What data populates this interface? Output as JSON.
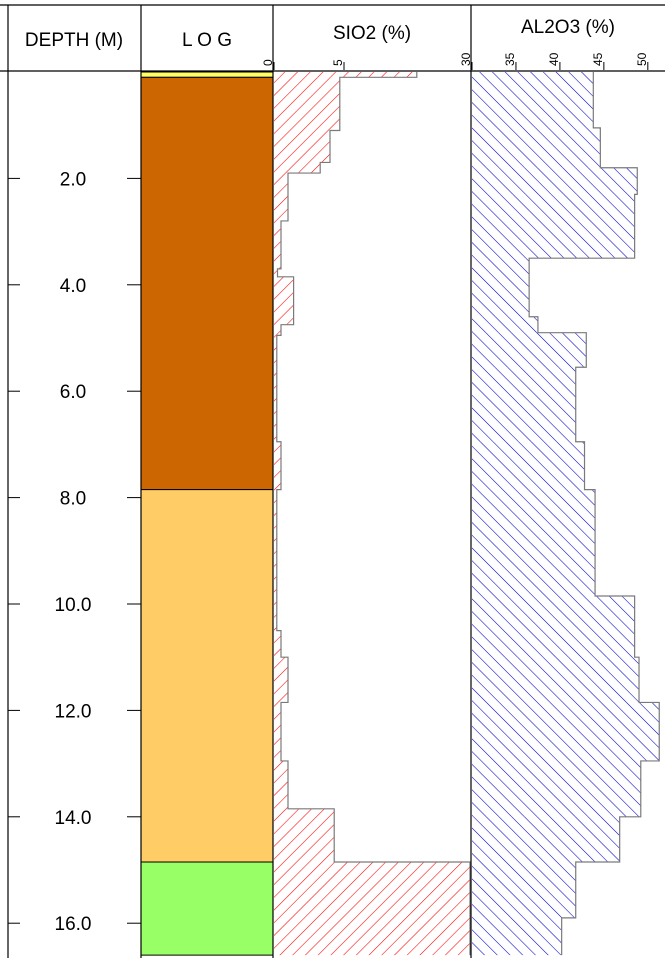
{
  "headers": {
    "depth": "DEPTH (M)",
    "log": "L O G",
    "sio2": "SIO2 (%)",
    "al2o3": "AL2O3 (%)"
  },
  "chart_data": {
    "type": "step-area",
    "depth_axis": {
      "label": "DEPTH (M)",
      "range": [
        0,
        16.6
      ],
      "ticks": [
        2,
        4,
        6,
        8,
        10,
        12,
        14,
        16
      ],
      "tick_labels": [
        "2.0",
        "4.0",
        "6.0",
        "8.0",
        "10.0",
        "12.0",
        "14.0",
        "16.0"
      ]
    },
    "log": {
      "label": "L O G",
      "layers": [
        {
          "top": 0.0,
          "bottom": 0.1,
          "color": "#FFFF66"
        },
        {
          "top": 0.1,
          "bottom": 7.85,
          "color": "#CC6600"
        },
        {
          "top": 7.85,
          "bottom": 14.85,
          "color": "#FFCC66"
        },
        {
          "top": 14.85,
          "bottom": 16.6,
          "color": "#99FF66"
        }
      ]
    },
    "sio2": {
      "label": "SIO2 (%)",
      "xlim": [
        0,
        14
      ],
      "ticks": [
        0,
        5
      ],
      "tick_labels": [
        "0",
        "5"
      ],
      "hatch_color": "#FF0000",
      "steps": [
        {
          "top": 0.0,
          "bottom": 0.1,
          "value": 10.2
        },
        {
          "top": 0.1,
          "bottom": 1.1,
          "value": 4.7
        },
        {
          "top": 1.1,
          "bottom": 1.7,
          "value": 4.0
        },
        {
          "top": 1.7,
          "bottom": 1.9,
          "value": 3.3
        },
        {
          "top": 1.9,
          "bottom": 2.8,
          "value": 1.0
        },
        {
          "top": 2.8,
          "bottom": 3.7,
          "value": 0.5
        },
        {
          "top": 3.7,
          "bottom": 3.85,
          "value": 0.25
        },
        {
          "top": 3.85,
          "bottom": 4.75,
          "value": 1.4
        },
        {
          "top": 4.75,
          "bottom": 4.95,
          "value": 0.5
        },
        {
          "top": 4.95,
          "bottom": 6.95,
          "value": 0.2
        },
        {
          "top": 6.95,
          "bottom": 7.85,
          "value": 0.5
        },
        {
          "top": 7.85,
          "bottom": 10.5,
          "value": 0.2
        },
        {
          "top": 10.5,
          "bottom": 11.0,
          "value": 0.5
        },
        {
          "top": 11.0,
          "bottom": 11.85,
          "value": 1.0
        },
        {
          "top": 11.85,
          "bottom": 12.95,
          "value": 0.5
        },
        {
          "top": 12.95,
          "bottom": 13.85,
          "value": 1.0
        },
        {
          "top": 13.85,
          "bottom": 14.85,
          "value": 4.3
        },
        {
          "top": 14.85,
          "bottom": 16.6,
          "value": 14.0
        }
      ]
    },
    "al2o3": {
      "label": "AL2O3 (%)",
      "xlim": [
        30,
        51.5
      ],
      "ticks": [
        30,
        35,
        40,
        45,
        50
      ],
      "tick_labels": [
        "30",
        "35",
        "40",
        "45",
        "50"
      ],
      "hatch_color": "#0000CC",
      "steps": [
        {
          "top": 0.0,
          "bottom": 1.05,
          "value": 43.8
        },
        {
          "top": 1.05,
          "bottom": 1.8,
          "value": 44.6
        },
        {
          "top": 1.8,
          "bottom": 2.3,
          "value": 48.8
        },
        {
          "top": 2.3,
          "bottom": 3.5,
          "value": 48.5
        },
        {
          "top": 3.5,
          "bottom": 4.6,
          "value": 36.5
        },
        {
          "top": 4.6,
          "bottom": 4.9,
          "value": 37.5
        },
        {
          "top": 4.9,
          "bottom": 5.55,
          "value": 43.0
        },
        {
          "top": 5.55,
          "bottom": 6.95,
          "value": 41.8
        },
        {
          "top": 6.95,
          "bottom": 7.85,
          "value": 42.8
        },
        {
          "top": 7.85,
          "bottom": 9.85,
          "value": 44.0
        },
        {
          "top": 9.85,
          "bottom": 11.0,
          "value": 48.5
        },
        {
          "top": 11.0,
          "bottom": 11.85,
          "value": 49.0
        },
        {
          "top": 11.85,
          "bottom": 12.95,
          "value": 51.3
        },
        {
          "top": 12.95,
          "bottom": 14.0,
          "value": 49.2
        },
        {
          "top": 14.0,
          "bottom": 14.85,
          "value": 46.8
        },
        {
          "top": 14.85,
          "bottom": 15.9,
          "value": 41.8
        },
        {
          "top": 15.9,
          "bottom": 16.6,
          "value": 40.2
        }
      ]
    }
  }
}
